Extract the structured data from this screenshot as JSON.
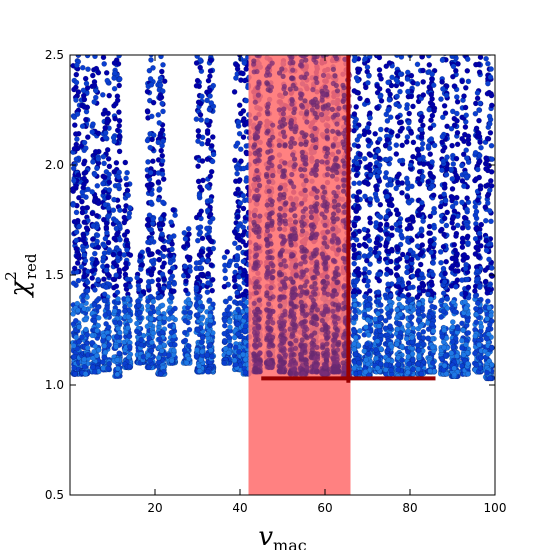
{
  "chart_data": {
    "type": "scatter",
    "xlabel": "v_mac",
    "ylabel": "χ²_red",
    "xlim": [
      0,
      100
    ],
    "ylim": [
      0.5,
      2.5
    ],
    "xticks": [
      20,
      40,
      60,
      80,
      100
    ],
    "yticks": [
      0.5,
      1.0,
      1.5,
      2.0,
      2.5
    ],
    "xtick_labels": [
      "20",
      "40",
      "60",
      "80",
      "100"
    ],
    "ytick_labels": [
      "0.5",
      "1.0",
      "1.5",
      "2.0",
      "2.5"
    ],
    "grid": false,
    "legend": "none",
    "colors": {
      "dark_point": "#0000aa",
      "mid_point": "#0a3fd0",
      "light_point": "#1e78e6",
      "highlight_band": "#ff6f6f",
      "best_fit_line": "#990000"
    },
    "highlight_band": {
      "x_range": [
        42,
        66
      ],
      "y_range": [
        0.5,
        2.5
      ]
    },
    "best_fit_marker": {
      "vertical_x": 65.5,
      "vertical_y_range": [
        1.01,
        2.5
      ],
      "horizontal_y": 1.03,
      "horizontal_x_range": [
        45,
        86
      ]
    },
    "point_columns": [
      {
        "x": 1.5,
        "min": 1.05,
        "top": 2.5
      },
      {
        "x": 3.5,
        "min": 1.05,
        "top": 2.5
      },
      {
        "x": 6.0,
        "min": 1.06,
        "top": 2.5
      },
      {
        "x": 8.5,
        "min": 1.07,
        "top": 2.5
      },
      {
        "x": 11.0,
        "min": 1.04,
        "top": 2.5
      },
      {
        "x": 13.5,
        "min": 1.08,
        "top": 2.0
      },
      {
        "x": 16.5,
        "min": 1.1,
        "top": 1.6
      },
      {
        "x": 19.0,
        "min": 1.08,
        "top": 2.5
      },
      {
        "x": 21.5,
        "min": 1.05,
        "top": 2.5
      },
      {
        "x": 24.0,
        "min": 1.1,
        "top": 1.8
      },
      {
        "x": 27.5,
        "min": 1.1,
        "top": 1.7
      },
      {
        "x": 30.5,
        "min": 1.06,
        "top": 2.5
      },
      {
        "x": 33.0,
        "min": 1.06,
        "top": 2.5
      },
      {
        "x": 37.0,
        "min": 1.1,
        "top": 1.6
      },
      {
        "x": 39.5,
        "min": 1.07,
        "top": 2.5
      },
      {
        "x": 41.5,
        "min": 1.05,
        "top": 2.5
      },
      {
        "x": 44.0,
        "min": 1.06,
        "top": 2.5
      },
      {
        "x": 47.0,
        "min": 1.08,
        "top": 2.5
      },
      {
        "x": 50.0,
        "min": 1.06,
        "top": 2.5
      },
      {
        "x": 52.5,
        "min": 1.05,
        "top": 2.5
      },
      {
        "x": 55.0,
        "min": 1.05,
        "top": 2.5
      },
      {
        "x": 57.5,
        "min": 1.06,
        "top": 2.5
      },
      {
        "x": 60.0,
        "min": 1.05,
        "top": 2.5
      },
      {
        "x": 62.5,
        "min": 1.06,
        "top": 2.5
      },
      {
        "x": 65.0,
        "min": 1.04,
        "top": 2.5
      },
      {
        "x": 67.5,
        "min": 1.05,
        "top": 2.5
      },
      {
        "x": 70.0,
        "min": 1.04,
        "top": 2.5
      },
      {
        "x": 72.5,
        "min": 1.06,
        "top": 2.5
      },
      {
        "x": 75.0,
        "min": 1.05,
        "top": 2.5
      },
      {
        "x": 77.5,
        "min": 1.04,
        "top": 2.5
      },
      {
        "x": 80.0,
        "min": 1.05,
        "top": 2.5
      },
      {
        "x": 82.5,
        "min": 1.05,
        "top": 2.5
      },
      {
        "x": 85.0,
        "min": 1.06,
        "top": 2.5
      },
      {
        "x": 88.0,
        "min": 1.05,
        "top": 2.5
      },
      {
        "x": 90.5,
        "min": 1.04,
        "top": 2.5
      },
      {
        "x": 93.0,
        "min": 1.05,
        "top": 2.5
      },
      {
        "x": 96.0,
        "min": 1.06,
        "top": 2.5
      },
      {
        "x": 98.5,
        "min": 1.03,
        "top": 2.5
      }
    ]
  }
}
